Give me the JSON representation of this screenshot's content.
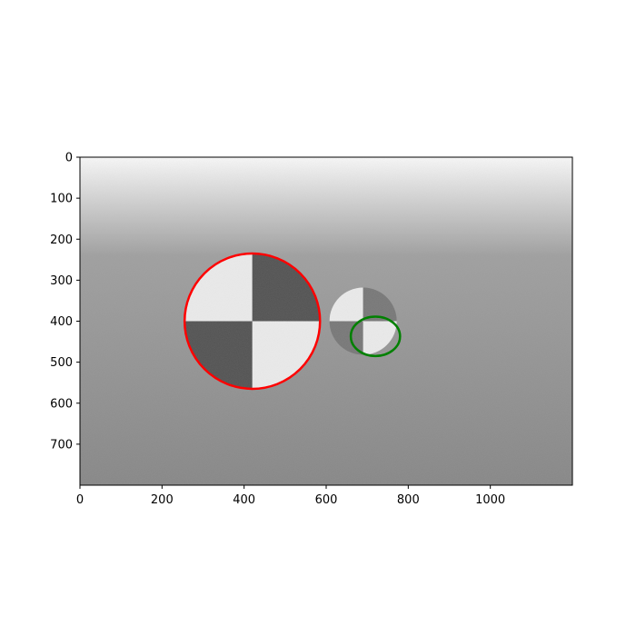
{
  "chart_data": {
    "type": "image",
    "title": "",
    "xlabel": "",
    "ylabel": "",
    "image_size": [
      1200,
      800
    ],
    "xlim": [
      0,
      1200
    ],
    "ylim": [
      800,
      0
    ],
    "x_ticks": [
      0,
      200,
      400,
      600,
      800,
      1000
    ],
    "y_ticks": [
      0,
      100,
      200,
      300,
      400,
      500,
      600,
      700
    ],
    "grid": false,
    "background": {
      "gradient": "vertical",
      "top_color": "#fafafa",
      "mid_color": "#9e9e9e",
      "bottom_color": "#858585"
    },
    "targets": [
      {
        "name": "large-checkerboard",
        "center": [
          420,
          400
        ],
        "radius": 165,
        "light_color": "#ececec",
        "dark_color": "#4f4f4f"
      },
      {
        "name": "small-checkerboard",
        "center": [
          690,
          400
        ],
        "radius": 82,
        "light_color": "#ececec",
        "dark_color": "#757575"
      }
    ],
    "annotations": [
      {
        "shape": "circle",
        "center": [
          420,
          400
        ],
        "radius": 165,
        "color": "#ff0000"
      },
      {
        "shape": "ellipse",
        "center": [
          720,
          437
        ],
        "rx": 60,
        "ry": 48,
        "color": "#008000"
      }
    ]
  }
}
